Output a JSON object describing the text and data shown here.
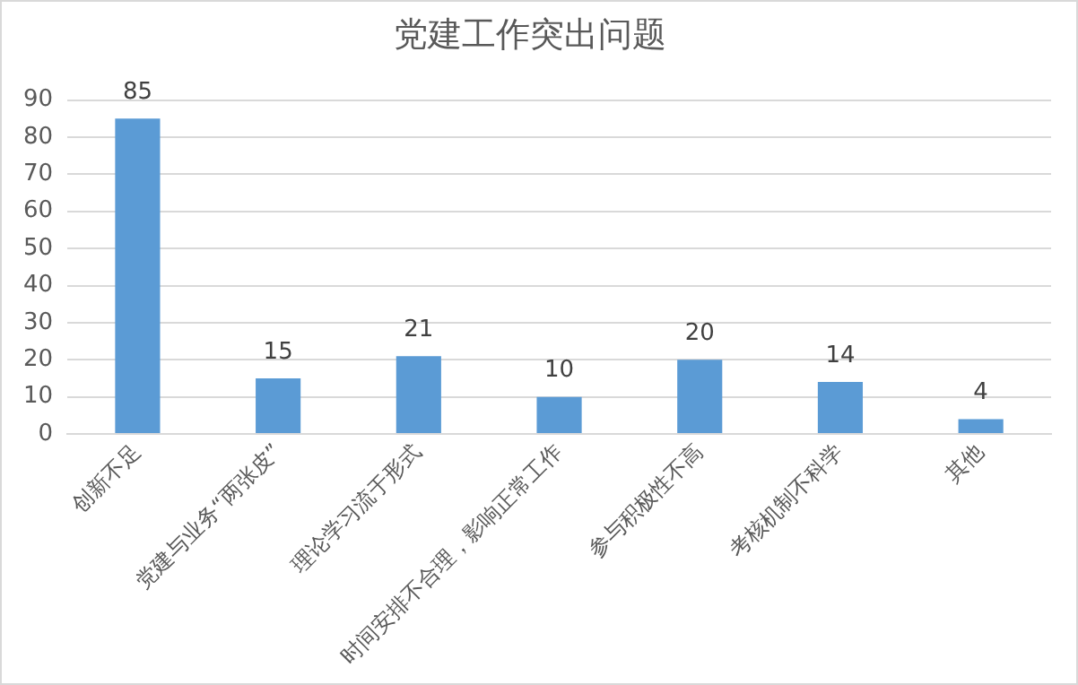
{
  "chart_data": {
    "type": "bar",
    "title": "党建工作突出问题",
    "categories": [
      "创新不足",
      "党建与业务“两张皮”",
      "理论学习流于形式",
      "时间安排不合理，影响正常工作",
      "参与积极性不高",
      "考核机制不科学",
      "其他"
    ],
    "values": [
      85,
      15,
      21,
      10,
      20,
      14,
      4
    ],
    "color": "#5b9bd5",
    "ylim": [
      0,
      90
    ],
    "yticks": [
      0,
      10,
      20,
      30,
      40,
      50,
      60,
      70,
      80,
      90
    ],
    "grid": "y",
    "legend": false,
    "data_labels": true
  }
}
